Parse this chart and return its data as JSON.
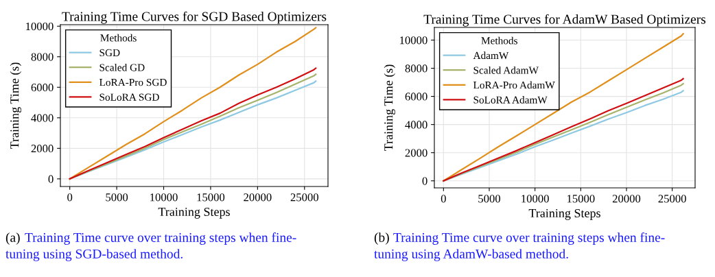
{
  "chart_data": [
    {
      "type": "line",
      "title": "Training Time Curves for SGD Based Optimizers",
      "xlabel": "Training Steps",
      "ylabel": "Training Time (s)",
      "legend_title": "Methods",
      "legend": "top left",
      "grid": true,
      "marker": "none",
      "line_style": "solid",
      "x": [
        0,
        2000,
        4000,
        6000,
        8000,
        10000,
        12000,
        14000,
        16000,
        18000,
        20000,
        22000,
        24000,
        26000,
        26200
      ],
      "xlim": [
        -1000,
        27500
      ],
      "ylim": [
        -500,
        10100
      ],
      "xticks": [
        0,
        5000,
        10000,
        15000,
        20000,
        25000
      ],
      "yticks": [
        0,
        2000,
        4000,
        6000,
        8000,
        10000
      ],
      "series": [
        {
          "name": "SGD",
          "color": "#8ec9e3",
          "values": [
            0,
            480,
            950,
            1420,
            1900,
            2420,
            2900,
            3400,
            3850,
            4350,
            4850,
            5300,
            5800,
            6300,
            6400
          ]
        },
        {
          "name": "Scaled GD",
          "color": "#a6b36b",
          "values": [
            0,
            510,
            1000,
            1500,
            2000,
            2580,
            3080,
            3580,
            4100,
            4650,
            5150,
            5650,
            6200,
            6750,
            6850
          ]
        },
        {
          "name": "LoRA-Pro SGD",
          "color": "#e0901a",
          "values": [
            0,
            750,
            1500,
            2250,
            2950,
            3750,
            4500,
            5300,
            6000,
            6800,
            7500,
            8300,
            9000,
            9800,
            9900
          ]
        },
        {
          "name": "SoLoRA SGD",
          "color": "#d00f12",
          "values": [
            0,
            540,
            1070,
            1600,
            2120,
            2700,
            3250,
            3800,
            4300,
            4950,
            5500,
            6000,
            6550,
            7150,
            7250
          ]
        }
      ],
      "annotations": [
        "(a)",
        "Training Time curve over training steps when fine-",
        "tuning using SGD-based method."
      ]
    },
    {
      "type": "line",
      "title": "Training Time Curves for AdamW Based Optimizers",
      "xlabel": "Training Steps",
      "ylabel": "Training Time (s)",
      "legend_title": "Methods",
      "legend": "top left",
      "grid": true,
      "marker": "none",
      "line_style": "solid",
      "x": [
        0,
        2000,
        4000,
        6000,
        8000,
        10000,
        12000,
        14000,
        16000,
        18000,
        20000,
        22000,
        24000,
        26000,
        26200
      ],
      "xlim": [
        -1000,
        27500
      ],
      "ylim": [
        -500,
        10900
      ],
      "xticks": [
        0,
        5000,
        10000,
        15000,
        20000,
        25000
      ],
      "yticks": [
        0,
        2000,
        4000,
        6000,
        8000,
        10000
      ],
      "series": [
        {
          "name": "AdamW",
          "color": "#8ec9e3",
          "values": [
            0,
            480,
            950,
            1430,
            1900,
            2420,
            2900,
            3400,
            3880,
            4380,
            4850,
            5350,
            5800,
            6300,
            6400
          ]
        },
        {
          "name": "Scaled AdamW",
          "color": "#a6b36b",
          "values": [
            0,
            520,
            1020,
            1530,
            2030,
            2600,
            3120,
            3630,
            4150,
            4700,
            5220,
            5750,
            6250,
            6800,
            6900
          ]
        },
        {
          "name": "LoRA-Pro AdamW",
          "color": "#e0901a",
          "values": [
            0,
            800,
            1600,
            2420,
            3200,
            4000,
            4800,
            5600,
            6300,
            7100,
            7900,
            8700,
            9500,
            10300,
            10450
          ]
        },
        {
          "name": "SoLoRA AdamW",
          "color": "#d00f12",
          "values": [
            0,
            560,
            1080,
            1620,
            2150,
            2720,
            3280,
            3850,
            4400,
            4980,
            5500,
            6050,
            6600,
            7150,
            7250
          ]
        }
      ],
      "annotations": [
        "(b)",
        "Training Time curve over training steps when fine-",
        "tuning using AdamW-based method."
      ]
    }
  ]
}
